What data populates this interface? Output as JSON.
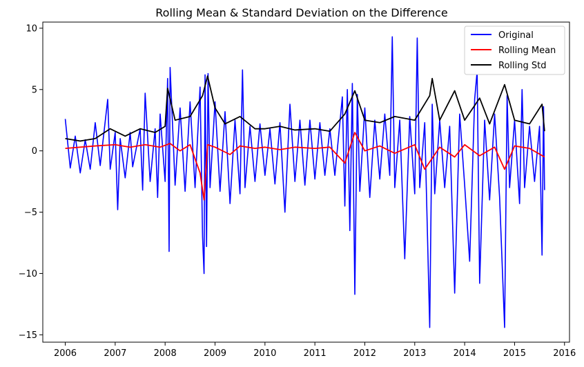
{
  "chart_data": {
    "type": "line",
    "title": "Rolling Mean & Standard Deviation on the Difference",
    "xlabel": "",
    "ylabel": "",
    "xlim": [
      2005.55,
      2016.1
    ],
    "ylim": [
      -15.6,
      10.5
    ],
    "x_ticks": [
      "2006",
      "2007",
      "2008",
      "2009",
      "2010",
      "2011",
      "2012",
      "2013",
      "2014",
      "2015",
      "2016"
    ],
    "y_ticks": [
      10,
      5,
      0,
      -5,
      -10,
      -15
    ],
    "legend_position": "top-right",
    "grid": false,
    "series": [
      {
        "name": "Original",
        "color": "#0000ff",
        "points": [
          [
            2006.0,
            2.6
          ],
          [
            2006.1,
            -1.4
          ],
          [
            2006.2,
            1.2
          ],
          [
            2006.3,
            -1.8
          ],
          [
            2006.4,
            0.9
          ],
          [
            2006.5,
            -1.5
          ],
          [
            2006.6,
            2.3
          ],
          [
            2006.7,
            -1.2
          ],
          [
            2006.85,
            4.2
          ],
          [
            2006.9,
            -1.5
          ],
          [
            2007.0,
            1.5
          ],
          [
            2007.05,
            -4.8
          ],
          [
            2007.1,
            1.0
          ],
          [
            2007.2,
            -2.2
          ],
          [
            2007.3,
            1.5
          ],
          [
            2007.35,
            -1.3
          ],
          [
            2007.5,
            1.8
          ],
          [
            2007.55,
            -3.2
          ],
          [
            2007.6,
            4.7
          ],
          [
            2007.7,
            -2.5
          ],
          [
            2007.8,
            1.8
          ],
          [
            2007.85,
            -3.8
          ],
          [
            2007.9,
            3.0
          ],
          [
            2008.0,
            -2.5
          ],
          [
            2008.05,
            5.9
          ],
          [
            2008.08,
            -8.2
          ],
          [
            2008.1,
            6.8
          ],
          [
            2008.2,
            -2.8
          ],
          [
            2008.3,
            3.5
          ],
          [
            2008.4,
            -3.3
          ],
          [
            2008.5,
            4.0
          ],
          [
            2008.6,
            -3.0
          ],
          [
            2008.7,
            5.2
          ],
          [
            2008.75,
            -7.0
          ],
          [
            2008.78,
            -10.0
          ],
          [
            2008.8,
            6.2
          ],
          [
            2008.83,
            -7.8
          ],
          [
            2008.86,
            6.3
          ],
          [
            2008.9,
            -3.0
          ],
          [
            2009.0,
            4.0
          ],
          [
            2009.1,
            -3.3
          ],
          [
            2009.2,
            3.2
          ],
          [
            2009.3,
            -4.3
          ],
          [
            2009.4,
            2.5
          ],
          [
            2009.5,
            -3.5
          ],
          [
            2009.55,
            6.6
          ],
          [
            2009.6,
            -3.0
          ],
          [
            2009.7,
            2.0
          ],
          [
            2009.8,
            -2.5
          ],
          [
            2009.9,
            2.2
          ],
          [
            2010.0,
            -2.0
          ],
          [
            2010.1,
            1.8
          ],
          [
            2010.2,
            -2.7
          ],
          [
            2010.3,
            2.3
          ],
          [
            2010.4,
            -5.0
          ],
          [
            2010.5,
            3.8
          ],
          [
            2010.6,
            -2.5
          ],
          [
            2010.7,
            2.5
          ],
          [
            2010.8,
            -2.8
          ],
          [
            2010.9,
            2.5
          ],
          [
            2011.0,
            -2.3
          ],
          [
            2011.1,
            2.3
          ],
          [
            2011.2,
            -2.0
          ],
          [
            2011.3,
            1.8
          ],
          [
            2011.4,
            -2.0
          ],
          [
            2011.55,
            4.4
          ],
          [
            2011.6,
            -4.5
          ],
          [
            2011.65,
            5.0
          ],
          [
            2011.7,
            -6.5
          ],
          [
            2011.75,
            5.5
          ],
          [
            2011.8,
            -11.7
          ],
          [
            2011.85,
            4.6
          ],
          [
            2011.9,
            -3.3
          ],
          [
            2012.0,
            3.5
          ],
          [
            2012.1,
            -3.8
          ],
          [
            2012.2,
            2.5
          ],
          [
            2012.3,
            -2.3
          ],
          [
            2012.4,
            3.0
          ],
          [
            2012.5,
            -2.0
          ],
          [
            2012.55,
            9.3
          ],
          [
            2012.6,
            -3.0
          ],
          [
            2012.7,
            2.5
          ],
          [
            2012.8,
            -8.8
          ],
          [
            2012.9,
            2.8
          ],
          [
            2013.0,
            -3.5
          ],
          [
            2013.05,
            9.2
          ],
          [
            2013.1,
            -3.0
          ],
          [
            2013.2,
            2.3
          ],
          [
            2013.3,
            -14.4
          ],
          [
            2013.35,
            3.8
          ],
          [
            2013.4,
            -3.5
          ],
          [
            2013.5,
            2.5
          ],
          [
            2013.6,
            -3.0
          ],
          [
            2013.7,
            2.0
          ],
          [
            2013.8,
            -11.6
          ],
          [
            2013.9,
            3.0
          ],
          [
            2014.0,
            -2.8
          ],
          [
            2014.1,
            -9.0
          ],
          [
            2014.2,
            4.2
          ],
          [
            2014.25,
            6.5
          ],
          [
            2014.3,
            -10.8
          ],
          [
            2014.4,
            2.5
          ],
          [
            2014.5,
            -4.0
          ],
          [
            2014.6,
            3.0
          ],
          [
            2014.7,
            -3.8
          ],
          [
            2014.8,
            -14.4
          ],
          [
            2014.85,
            4.5
          ],
          [
            2014.9,
            -3.0
          ],
          [
            2015.0,
            2.5
          ],
          [
            2015.1,
            -4.3
          ],
          [
            2015.15,
            5.0
          ],
          [
            2015.2,
            -3.0
          ],
          [
            2015.3,
            2.0
          ],
          [
            2015.4,
            -2.5
          ],
          [
            2015.5,
            2.0
          ],
          [
            2015.55,
            -8.5
          ],
          [
            2015.58,
            3.6
          ],
          [
            2015.6,
            -3.2
          ]
        ]
      },
      {
        "name": "Rolling Mean",
        "color": "#ff0000",
        "points": [
          [
            2006.0,
            0.2
          ],
          [
            2006.3,
            0.3
          ],
          [
            2006.6,
            0.4
          ],
          [
            2007.0,
            0.5
          ],
          [
            2007.3,
            0.3
          ],
          [
            2007.6,
            0.5
          ],
          [
            2007.9,
            0.3
          ],
          [
            2008.1,
            0.6
          ],
          [
            2008.3,
            0.0
          ],
          [
            2008.5,
            0.5
          ],
          [
            2008.7,
            -1.8
          ],
          [
            2008.78,
            -4.0
          ],
          [
            2008.85,
            0.5
          ],
          [
            2009.0,
            0.3
          ],
          [
            2009.3,
            -0.3
          ],
          [
            2009.5,
            0.4
          ],
          [
            2009.8,
            0.2
          ],
          [
            2010.0,
            0.3
          ],
          [
            2010.3,
            0.1
          ],
          [
            2010.6,
            0.3
          ],
          [
            2011.0,
            0.2
          ],
          [
            2011.3,
            0.3
          ],
          [
            2011.6,
            -1.0
          ],
          [
            2011.8,
            1.5
          ],
          [
            2012.0,
            0.0
          ],
          [
            2012.3,
            0.4
          ],
          [
            2012.6,
            -0.2
          ],
          [
            2013.0,
            0.5
          ],
          [
            2013.2,
            -1.5
          ],
          [
            2013.5,
            0.3
          ],
          [
            2013.8,
            -0.5
          ],
          [
            2014.0,
            0.5
          ],
          [
            2014.3,
            -0.4
          ],
          [
            2014.6,
            0.3
          ],
          [
            2014.8,
            -1.5
          ],
          [
            2015.0,
            0.4
          ],
          [
            2015.3,
            0.2
          ],
          [
            2015.6,
            -0.5
          ]
        ]
      },
      {
        "name": "Rolling Std",
        "color": "#000000",
        "points": [
          [
            2006.0,
            1.0
          ],
          [
            2006.3,
            0.8
          ],
          [
            2006.6,
            1.0
          ],
          [
            2006.9,
            1.8
          ],
          [
            2007.2,
            1.2
          ],
          [
            2007.5,
            1.8
          ],
          [
            2007.8,
            1.5
          ],
          [
            2008.0,
            2.0
          ],
          [
            2008.05,
            5.1
          ],
          [
            2008.2,
            2.5
          ],
          [
            2008.5,
            2.8
          ],
          [
            2008.75,
            4.5
          ],
          [
            2008.85,
            6.1
          ],
          [
            2009.0,
            3.5
          ],
          [
            2009.2,
            2.2
          ],
          [
            2009.5,
            2.8
          ],
          [
            2009.8,
            1.8
          ],
          [
            2010.0,
            1.8
          ],
          [
            2010.3,
            2.0
          ],
          [
            2010.6,
            1.7
          ],
          [
            2011.0,
            1.8
          ],
          [
            2011.3,
            1.6
          ],
          [
            2011.6,
            3.0
          ],
          [
            2011.8,
            4.9
          ],
          [
            2012.0,
            2.5
          ],
          [
            2012.3,
            2.3
          ],
          [
            2012.6,
            2.8
          ],
          [
            2013.0,
            2.5
          ],
          [
            2013.3,
            4.5
          ],
          [
            2013.35,
            5.9
          ],
          [
            2013.5,
            2.5
          ],
          [
            2013.8,
            4.9
          ],
          [
            2014.0,
            2.5
          ],
          [
            2014.3,
            4.3
          ],
          [
            2014.5,
            2.2
          ],
          [
            2014.8,
            5.4
          ],
          [
            2015.0,
            2.5
          ],
          [
            2015.3,
            2.2
          ],
          [
            2015.55,
            3.8
          ],
          [
            2015.6,
            1.6
          ]
        ]
      }
    ]
  }
}
